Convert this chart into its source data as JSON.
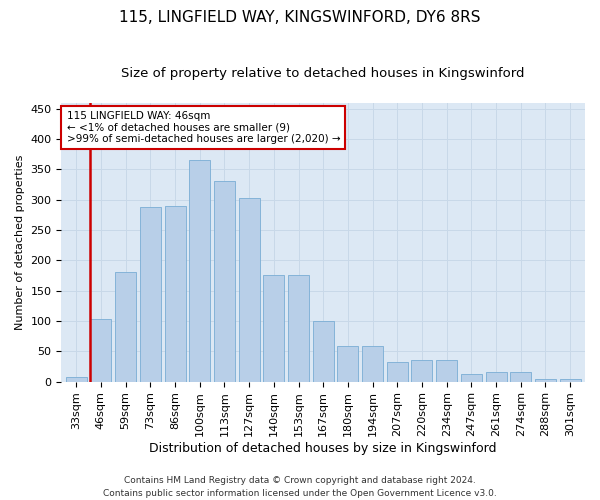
{
  "title": "115, LINGFIELD WAY, KINGSWINFORD, DY6 8RS",
  "subtitle": "Size of property relative to detached houses in Kingswinford",
  "xlabel": "Distribution of detached houses by size in Kingswinford",
  "ylabel": "Number of detached properties",
  "footer1": "Contains HM Land Registry data © Crown copyright and database right 2024.",
  "footer2": "Contains public sector information licensed under the Open Government Licence v3.0.",
  "categories": [
    "33sqm",
    "46sqm",
    "59sqm",
    "73sqm",
    "86sqm",
    "100sqm",
    "113sqm",
    "127sqm",
    "140sqm",
    "153sqm",
    "167sqm",
    "180sqm",
    "194sqm",
    "207sqm",
    "220sqm",
    "234sqm",
    "247sqm",
    "261sqm",
    "274sqm",
    "288sqm",
    "301sqm"
  ],
  "values": [
    8,
    103,
    181,
    288,
    290,
    365,
    330,
    303,
    175,
    175,
    100,
    58,
    58,
    32,
    35,
    35,
    13,
    15,
    15,
    5,
    4
  ],
  "highlighted_index": 1,
  "bar_color": "#b8cfe8",
  "bar_edge_color": "#7aadd4",
  "highlight_line_color": "#cc0000",
  "annotation_text": "115 LINGFIELD WAY: 46sqm\n← <1% of detached houses are smaller (9)\n>99% of semi-detached houses are larger (2,020) →",
  "annotation_box_facecolor": "#ffffff",
  "annotation_box_edgecolor": "#cc0000",
  "ylim": [
    0,
    460
  ],
  "yticks": [
    0,
    50,
    100,
    150,
    200,
    250,
    300,
    350,
    400,
    450
  ],
  "grid_color": "#c8d8e8",
  "bg_color": "#dce8f4",
  "title_fontsize": 11,
  "subtitle_fontsize": 9.5,
  "axis_fontsize": 8,
  "tick_fontsize": 8,
  "footer_fontsize": 6.5
}
